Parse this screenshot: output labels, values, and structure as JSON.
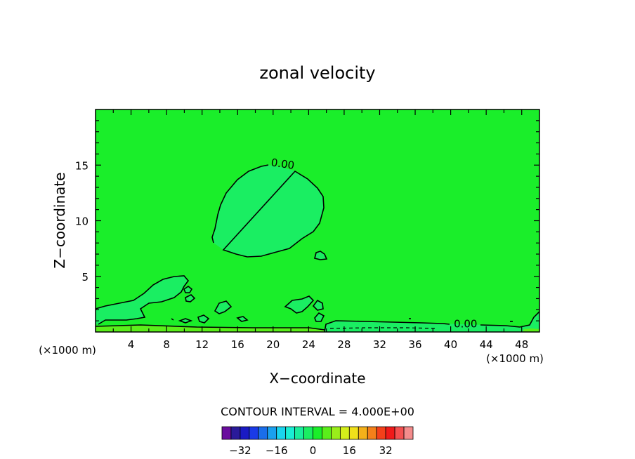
{
  "chart_data": {
    "type": "heatmap",
    "title": "zonal velocity",
    "xlabel": "X−coordinate",
    "ylabel": "Z−coordinate",
    "x_unit_left": "(×1000 m)",
    "x_unit_right": "(×1000 m)",
    "xlim": [
      0,
      50
    ],
    "ylim": [
      0,
      20
    ],
    "xticks": [
      4,
      8,
      12,
      16,
      20,
      24,
      28,
      32,
      36,
      40,
      44,
      48
    ],
    "yticks": [
      5,
      10,
      15
    ],
    "contour_labels": [
      {
        "text": "0.00",
        "x": 20.7,
        "y": 14.8
      },
      {
        "text": "0.00",
        "x": 41.7,
        "y": 0.4
      }
    ],
    "contour_interval_text": "CONTOUR INTERVAL = 4.000E+00",
    "colorbar": {
      "levels": [
        -36,
        -32,
        -28,
        -24,
        -20,
        -16,
        -12,
        -8,
        -4,
        0,
        4,
        8,
        12,
        16,
        20,
        24,
        28,
        32,
        36
      ],
      "tick_labels": [
        "−32",
        "−16",
        "0",
        "16",
        "32"
      ],
      "tick_values": [
        -32,
        -16,
        0,
        16,
        32
      ],
      "colors": [
        "#6a0d9e",
        "#2a1a9a",
        "#1a1ac4",
        "#1a3ae8",
        "#1a6eea",
        "#1aa0ee",
        "#1ad4ee",
        "#1aeed4",
        "#1aee9c",
        "#1aee62",
        "#1aee2a",
        "#5aee1a",
        "#9aee1a",
        "#d4ee1a",
        "#f0e01a",
        "#f4b01a",
        "#f4801a",
        "#f4401a",
        "#f01a1a",
        "#f45050",
        "#f48c8c"
      ]
    },
    "background_color": "#1aee2a",
    "region_color": "#1aee62",
    "band_color": "#5aee1a"
  }
}
